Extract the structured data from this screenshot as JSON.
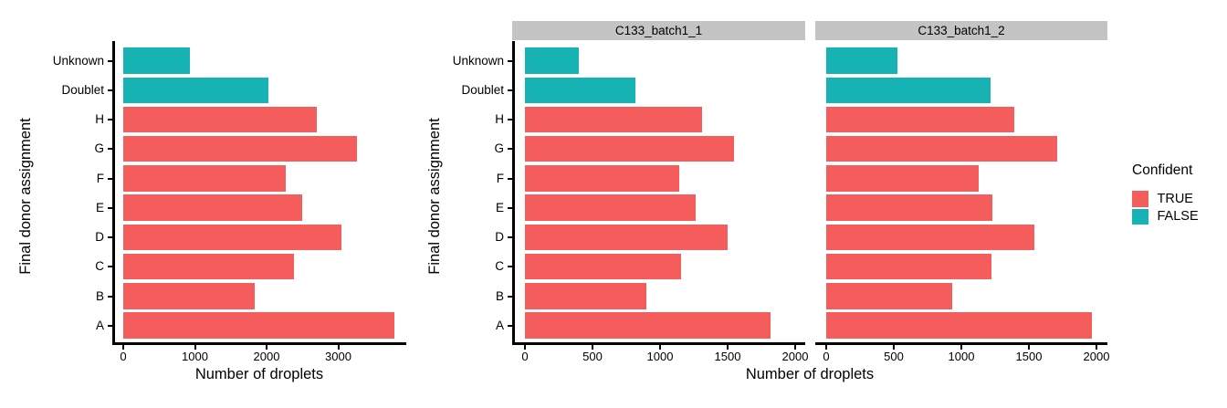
{
  "chart_data": {
    "type": "bar",
    "orientation": "horizontal",
    "title": "",
    "xlabel": "Number of droplets",
    "ylabel": "Final donor assignment",
    "grid": false,
    "categories_top_to_bottom": [
      "Unknown",
      "Doublet",
      "H",
      "G",
      "F",
      "E",
      "D",
      "C",
      "B",
      "A"
    ],
    "category_confident_top_to_bottom": [
      "FALSE",
      "FALSE",
      "TRUE",
      "TRUE",
      "TRUE",
      "TRUE",
      "TRUE",
      "TRUE",
      "TRUE",
      "TRUE"
    ],
    "colors": {
      "true_bar": "#F45D5B",
      "false_bar": "#17B2B4",
      "strip_background": "#C4C4C4",
      "axis": "#000000",
      "text": "#000000"
    },
    "legend": {
      "title": "Confident",
      "position": "right",
      "entries": [
        {
          "label": "TRUE",
          "color": "#F45D5B"
        },
        {
          "label": "FALSE",
          "color": "#17B2B4"
        }
      ]
    },
    "panels": [
      {
        "title": "",
        "xticks": [
          0,
          1000,
          2000,
          3000
        ],
        "xlim": [
          0,
          3950
        ],
        "values_top_to_bottom": [
          930,
          2030,
          2700,
          3260,
          2265,
          2490,
          3040,
          2380,
          1830,
          3780
        ]
      },
      {
        "title": "C133_batch1_1",
        "xticks": [
          0,
          500,
          1000,
          1500,
          2000
        ],
        "xlim": [
          0,
          2075
        ],
        "values_top_to_bottom": [
          400,
          815,
          1310,
          1550,
          1140,
          1260,
          1500,
          1155,
          900,
          1815
        ]
      },
      {
        "title": "C133_batch1_2",
        "xticks": [
          0,
          500,
          1000,
          1500,
          2000
        ],
        "xlim": [
          0,
          2075
        ],
        "values_top_to_bottom": [
          530,
          1215,
          1390,
          1710,
          1125,
          1230,
          1540,
          1225,
          930,
          1965
        ]
      }
    ]
  }
}
